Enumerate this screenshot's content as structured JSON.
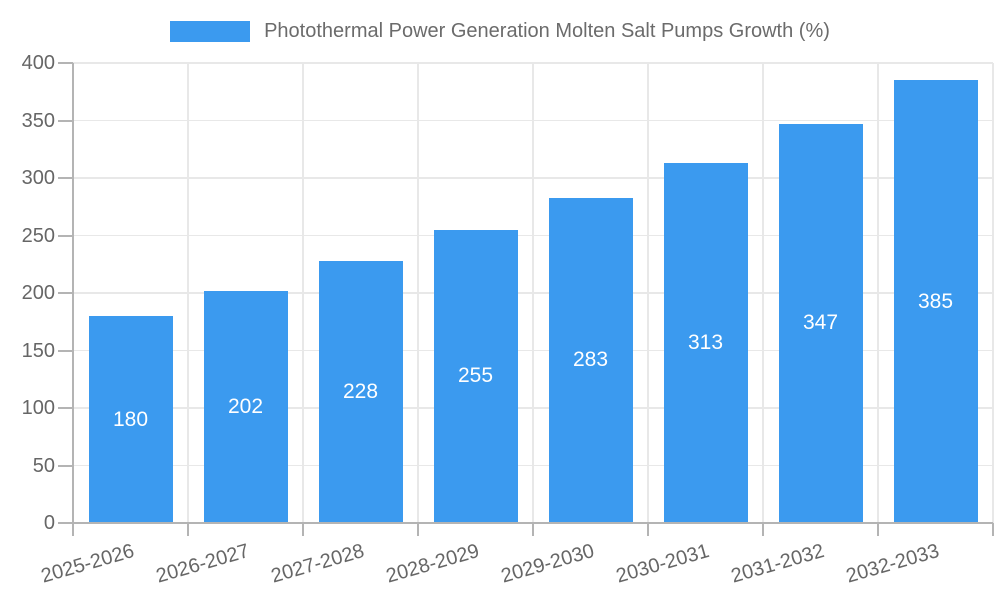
{
  "chart_data": {
    "type": "bar",
    "title": "",
    "legend_label": "Photothermal Power Generation Molten Salt Pumps Growth (%)",
    "legend_position": "top",
    "categories": [
      "2025-2026",
      "2026-2027",
      "2027-2028",
      "2028-2029",
      "2029-2030",
      "2030-2031",
      "2031-2032",
      "2032-2033"
    ],
    "series": [
      {
        "name": "Photothermal Power Generation Molten Salt Pumps Growth (%)",
        "values": [
          180,
          202,
          228,
          255,
          283,
          313,
          347,
          385
        ]
      }
    ],
    "xlabel": "",
    "ylabel": "",
    "ylim": [
      0,
      400
    ],
    "y_ticks": [
      0,
      50,
      100,
      150,
      200,
      250,
      300,
      350,
      400
    ],
    "grid": true,
    "value_labels": "inside-center",
    "x_label_rotation_deg": -16
  },
  "colors": {
    "bar": "#3B9AEF",
    "bar_label": "#FFFFFF",
    "grid_line": "#E8E8E8",
    "axis_line": "#B4B4B4",
    "tick_text": "#666666",
    "legend_text": "#6B6B6B",
    "background": "#FFFFFF"
  }
}
